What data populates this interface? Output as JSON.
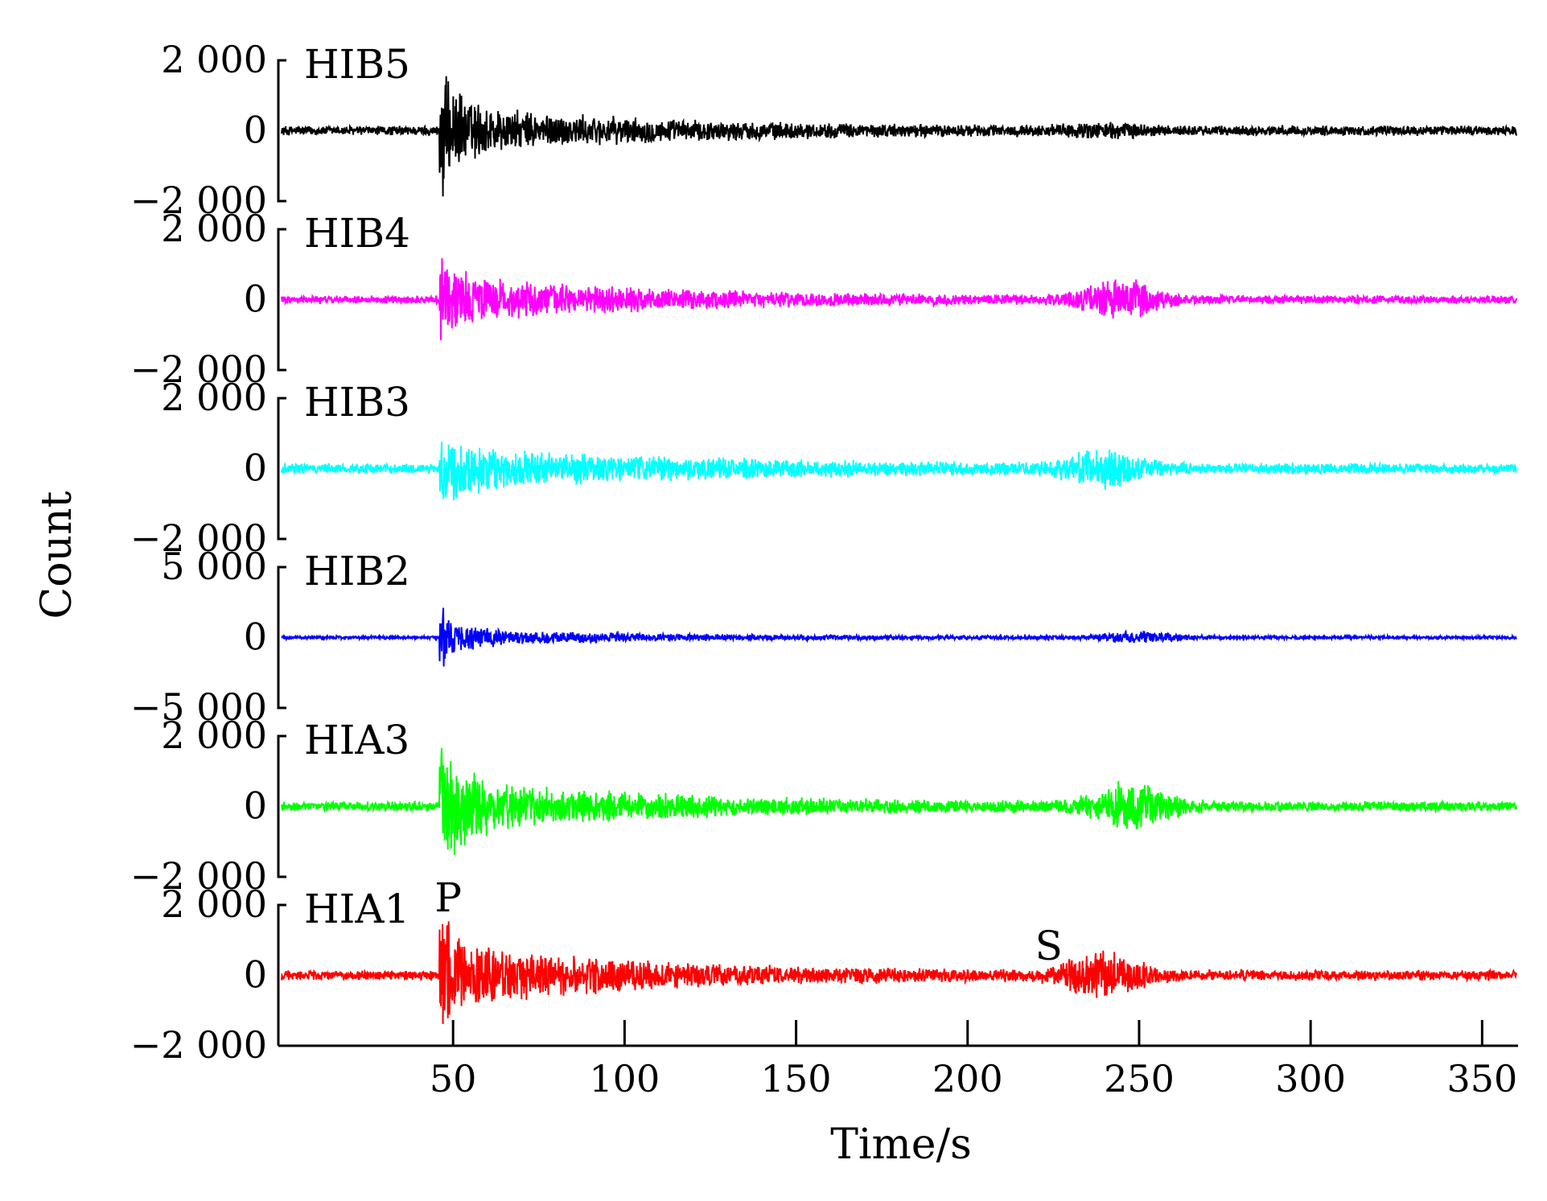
{
  "chart_data": {
    "type": "line",
    "xlabel": "Time/s",
    "ylabel": "Count",
    "xlim": [
      0,
      360
    ],
    "xticks": [
      50,
      100,
      150,
      200,
      250,
      300,
      350
    ],
    "p_arrival_s": 46,
    "phase_markers": [
      {
        "label": "P",
        "x": 47,
        "trace": "HIA1"
      },
      {
        "label": "S",
        "x": 222,
        "trace": "HIA1"
      }
    ],
    "series": [
      {
        "name": "HIB5",
        "color": "#000000",
        "ylim": [
          -2000,
          2000
        ],
        "yticks": [
          "2 000",
          "0",
          "−2 000"
        ],
        "noise_amp": 150,
        "p_peak": 1700,
        "coda_amp": 700,
        "coda_decay_s": 55,
        "s_burst": {
          "t": 240,
          "amp": 120
        },
        "samples": [
          [
            0,
            0
          ],
          [
            46,
            0
          ],
          [
            47,
            1700
          ],
          [
            48,
            -1650
          ],
          [
            62,
            1250
          ],
          [
            90,
            550
          ],
          [
            150,
            350
          ],
          [
            250,
            300
          ],
          [
            360,
            250
          ]
        ]
      },
      {
        "name": "HIB4",
        "color": "#ff00ff",
        "ylim": [
          -2000,
          2000
        ],
        "yticks": [
          "2 000",
          "0",
          "−2 000"
        ],
        "noise_amp": 120,
        "p_peak": 1000,
        "coda_amp": 650,
        "coda_decay_s": 60,
        "s_burst": {
          "t": 245,
          "amp": 550
        },
        "samples": [
          [
            0,
            0
          ],
          [
            46,
            0
          ],
          [
            47,
            1000
          ],
          [
            48,
            -1200
          ],
          [
            65,
            650
          ],
          [
            120,
            350
          ],
          [
            245,
            550
          ],
          [
            300,
            250
          ],
          [
            360,
            200
          ]
        ]
      },
      {
        "name": "HIB3",
        "color": "#00ffff",
        "ylim": [
          -2000,
          2000
        ],
        "yticks": [
          "2 000",
          "0",
          "−2 000"
        ],
        "noise_amp": 150,
        "p_peak": 800,
        "coda_amp": 600,
        "coda_decay_s": 70,
        "s_burst": {
          "t": 240,
          "amp": 450
        },
        "samples": [
          [
            0,
            0
          ],
          [
            46,
            0
          ],
          [
            47,
            800
          ],
          [
            48,
            -1100
          ],
          [
            60,
            600
          ],
          [
            120,
            400
          ],
          [
            240,
            450
          ],
          [
            300,
            300
          ],
          [
            360,
            250
          ]
        ]
      },
      {
        "name": "HIB2",
        "color": "#0000ff",
        "ylim": [
          -5000,
          5000
        ],
        "yticks": [
          "5 000",
          "0",
          "−5 000"
        ],
        "noise_amp": 120,
        "p_peak": 1800,
        "coda_amp": 700,
        "coda_decay_s": 50,
        "s_burst": {
          "t": 250,
          "amp": 350
        },
        "samples": [
          [
            0,
            0
          ],
          [
            46,
            0
          ],
          [
            47,
            1800
          ],
          [
            48,
            -2500
          ],
          [
            60,
            700
          ],
          [
            120,
            300
          ],
          [
            250,
            350
          ],
          [
            360,
            200
          ]
        ]
      },
      {
        "name": "HIA3",
        "color": "#00ff00",
        "ylim": [
          -2000,
          2000
        ],
        "yticks": [
          "2 000",
          "0",
          "−2 000"
        ],
        "noise_amp": 150,
        "p_peak": 1500,
        "coda_amp": 850,
        "coda_decay_s": 55,
        "s_burst": {
          "t": 248,
          "amp": 650
        },
        "samples": [
          [
            0,
            0
          ],
          [
            46,
            0
          ],
          [
            47,
            1500
          ],
          [
            48,
            -1800
          ],
          [
            60,
            850
          ],
          [
            120,
            350
          ],
          [
            248,
            650
          ],
          [
            300,
            300
          ],
          [
            360,
            250
          ]
        ]
      },
      {
        "name": "HIA1",
        "color": "#ff0000",
        "ylim": [
          -2000,
          2000
        ],
        "yticks": [
          "2 000",
          "0",
          "−2 000"
        ],
        "noise_amp": 150,
        "p_peak": 1500,
        "coda_amp": 950,
        "coda_decay_s": 55,
        "s_burst": {
          "t": 240,
          "amp": 600
        },
        "samples": [
          [
            0,
            0
          ],
          [
            46,
            0
          ],
          [
            47,
            1500
          ],
          [
            48,
            -1900
          ],
          [
            55,
            1100
          ],
          [
            120,
            400
          ],
          [
            240,
            600
          ],
          [
            300,
            350
          ],
          [
            360,
            300
          ]
        ]
      }
    ]
  }
}
